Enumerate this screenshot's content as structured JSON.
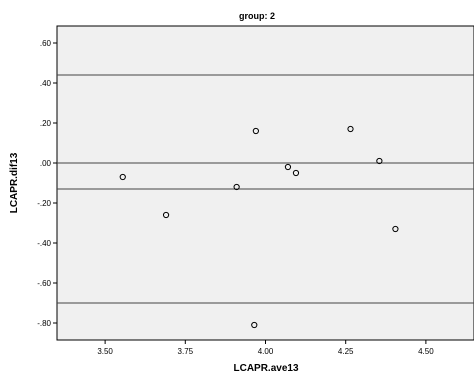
{
  "chart_data": {
    "type": "scatter",
    "title": "group: 2",
    "xlabel": "LCAPR.ave13",
    "ylabel": "LCAPR.dif13",
    "xlim": [
      3.35,
      4.65
    ],
    "ylim": [
      -0.885,
      0.685
    ],
    "xticks": [
      3.5,
      3.75,
      4.0,
      4.25,
      4.5
    ],
    "xtick_labels": [
      "3.50",
      "3.75",
      "4.00",
      "4.25",
      "4.50"
    ],
    "yticks": [
      0.6,
      0.4,
      0.2,
      0.0,
      -0.2,
      -0.4,
      -0.6,
      -0.8
    ],
    "ytick_labels": [
      ".60",
      ".40",
      ".20",
      ".00",
      "-.20",
      "-.40",
      "-.60",
      "-.80"
    ],
    "reference_lines": [
      0.44,
      0.0,
      -0.13,
      -0.7
    ],
    "grid": false,
    "background_color": "#f0f0f0",
    "points": [
      {
        "x": 3.555,
        "y": -0.07
      },
      {
        "x": 3.69,
        "y": -0.26
      },
      {
        "x": 3.91,
        "y": -0.12
      },
      {
        "x": 3.97,
        "y": 0.16
      },
      {
        "x": 4.07,
        "y": -0.02
      },
      {
        "x": 4.095,
        "y": -0.05
      },
      {
        "x": 4.265,
        "y": 0.17
      },
      {
        "x": 4.355,
        "y": 0.01
      },
      {
        "x": 4.405,
        "y": -0.33
      },
      {
        "x": 3.965,
        "y": -0.81
      }
    ]
  }
}
